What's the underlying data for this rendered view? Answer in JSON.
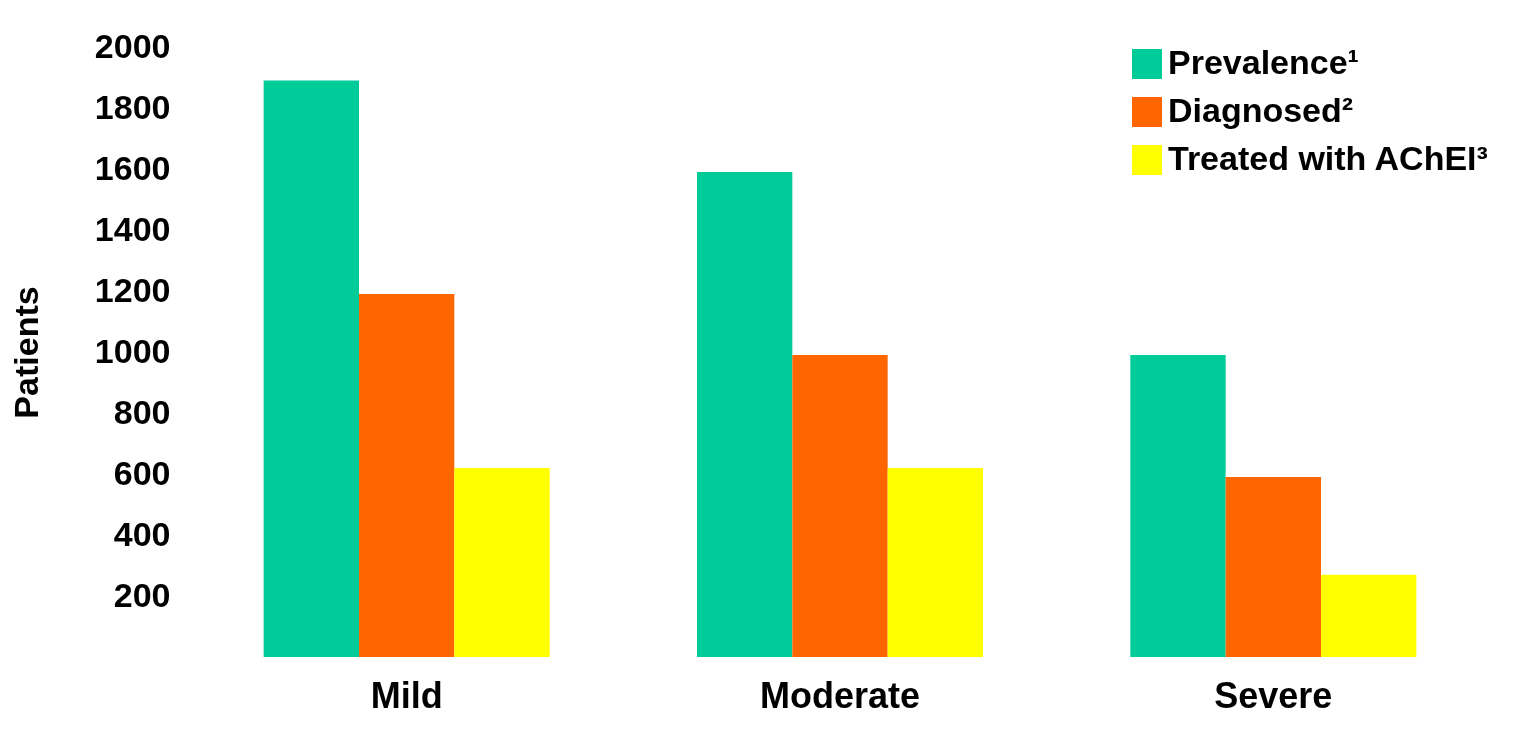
{
  "chart_data": {
    "type": "bar",
    "ylabel": "Patients",
    "categories": [
      "Mild",
      "Moderate",
      "Severe"
    ],
    "series": [
      {
        "name": "Prevalence¹",
        "color": "#00cc99",
        "values": [
          1890,
          1590,
          990
        ]
      },
      {
        "name": "Diagnosed²",
        "color": "#ff6600",
        "values": [
          1190,
          990,
          590
        ]
      },
      {
        "name": "Treated with AChEI³",
        "color": "#ffff00",
        "values": [
          620,
          620,
          270
        ]
      }
    ],
    "ylim": [
      0,
      2000
    ],
    "yticks": [
      200,
      400,
      600,
      800,
      1000,
      1200,
      1400,
      1600,
      1800,
      2000
    ],
    "grid": false,
    "legend": "top right"
  }
}
